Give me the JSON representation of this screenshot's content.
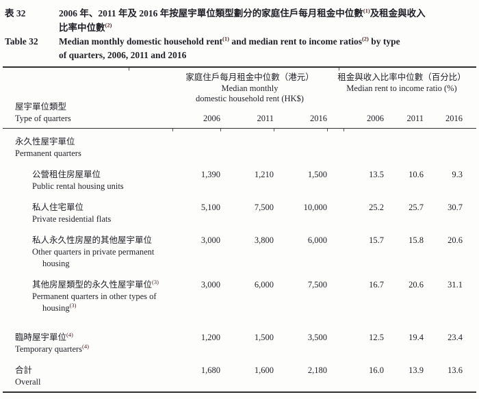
{
  "meta": {
    "text_color": "#1f1f26",
    "rule_color": "#2e2e2e",
    "footnote_sup_color": "#4a2424",
    "background": "#fdfdfc"
  },
  "title": {
    "zh_label": "表 32",
    "zh_lines": [
      {
        "segs": [
          {
            "t": "2006 年、2011 年及 2016 年按屋宇單位類型劃分的家庭住戶每月租金中位數"
          },
          {
            "sup": "(1)"
          },
          {
            "t": "及租金與收入"
          }
        ]
      },
      {
        "segs": [
          {
            "t": "比率中位數"
          },
          {
            "sup": "(2)"
          }
        ]
      }
    ],
    "en_label": "Table 32",
    "en_lines": [
      {
        "segs": [
          {
            "t": "Median monthly domestic household rent"
          },
          {
            "sup": "(1)"
          },
          {
            "t": " and median rent to income ratios"
          },
          {
            "sup": "(2)"
          },
          {
            "t": " by type"
          }
        ]
      },
      {
        "segs": [
          {
            "t": "of quarters, 2006, 2011 and 2016"
          }
        ]
      }
    ]
  },
  "table": {
    "stub": {
      "zh": "屋宇單位類型",
      "en": "Type of quarters"
    },
    "groups": [
      {
        "zh": "家庭住戶每月租金中位數（港元）",
        "en_lines": [
          "Median monthly",
          "domestic household rent (HK$)"
        ]
      },
      {
        "zh": "租金與收入比率中位數（百分比）",
        "en_lines": [
          "Median rent to income ratio (%)"
        ]
      }
    ],
    "years": [
      "2006",
      "2011",
      "2016",
      "2006",
      "2011",
      "2016"
    ],
    "rows": [
      {
        "zh": "永久性屋宇單位",
        "en_lines": [
          {
            "t": "Permanent quarters"
          }
        ],
        "indent": false,
        "values": [
          "",
          "",
          "",
          "",
          "",
          ""
        ]
      },
      {
        "zh": "公營租住房屋單位",
        "en_lines": [
          {
            "t": "Public rental housing units"
          }
        ],
        "indent": true,
        "values": [
          "1,390",
          "1,210",
          "1,500",
          "13.5",
          "10.6",
          "9.3"
        ]
      },
      {
        "zh": "私人住宅單位",
        "en_lines": [
          {
            "t": "Private residential flats"
          }
        ],
        "indent": true,
        "values": [
          "5,100",
          "7,500",
          "10,000",
          "25.2",
          "25.7",
          "30.7"
        ]
      },
      {
        "zh": "私人永久性房屋的其他屋宇單位",
        "en_lines": [
          {
            "t": "Other quarters in private permanent"
          },
          {
            "t": "housing",
            "cont": true
          }
        ],
        "indent": true,
        "values": [
          "3,000",
          "3,800",
          "6,000",
          "15.7",
          "15.8",
          "20.6"
        ]
      },
      {
        "zh": "其他房屋類型的永久性屋宇單位",
        "zh_sup": "(3)",
        "en_lines": [
          {
            "t": "Permanent quarters in other types of"
          },
          {
            "t": "housing",
            "sup": "(3)",
            "cont": true
          }
        ],
        "indent": true,
        "values": [
          "3,000",
          "6,000",
          "7,500",
          "16.7",
          "20.6",
          "31.1"
        ],
        "gap_after": 26
      },
      {
        "zh": "臨時屋宇單位",
        "zh_sup": "(4)",
        "en_lines": [
          {
            "t": "Temporary quarters",
            "sup": "(4)"
          }
        ],
        "indent": false,
        "values": [
          "1,200",
          "1,500",
          "3,500",
          "12.5",
          "19.4",
          "23.4"
        ]
      },
      {
        "zh": "合計",
        "en_lines": [
          {
            "t": "Overall"
          }
        ],
        "indent": false,
        "values": [
          "1,680",
          "1,600",
          "2,180",
          "16.0",
          "13.9",
          "13.6"
        ]
      }
    ]
  }
}
